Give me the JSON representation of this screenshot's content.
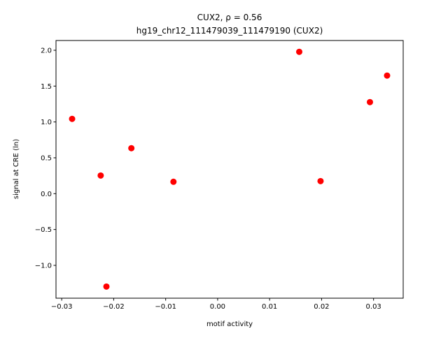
{
  "chart_data": {
    "type": "scatter",
    "title": "CUX2, ρ = 0.56",
    "subtitle": "hg19_chr12_111479039_111479190 (CUX2)",
    "x_label": "motif activity",
    "y_label": "signal at CRE (ln)",
    "color": "#ff0000",
    "x": [
      -0.028,
      -0.0225,
      -0.0214,
      -0.0166,
      -0.0085,
      0.0157,
      0.0198,
      0.0293,
      0.0326
    ],
    "values": [
      1.043,
      0.253,
      -1.296,
      0.634,
      0.166,
      1.978,
      0.175,
      1.277,
      1.647
    ],
    "xlim": [
      -0.0311,
      0.0357
    ],
    "ylim": [
      -1.458,
      2.136
    ],
    "xticks": [
      {
        "value": -0.03,
        "label": "−0.03"
      },
      {
        "value": -0.02,
        "label": "−0.02"
      },
      {
        "value": -0.01,
        "label": "−0.01"
      },
      {
        "value": 0,
        "label": "0.00"
      },
      0.01,
      0.02,
      0.03
    ],
    "yticks": [
      {
        "value": -1,
        "label": "−1.0"
      },
      {
        "value": -0.5,
        "label": "−0.5"
      },
      {
        "value": 0,
        "label": "0.0"
      },
      0.5,
      {
        "value": 1,
        "label": "1.0"
      },
      1.5,
      {
        "value": 2,
        "label": "2.0"
      }
    ]
  }
}
